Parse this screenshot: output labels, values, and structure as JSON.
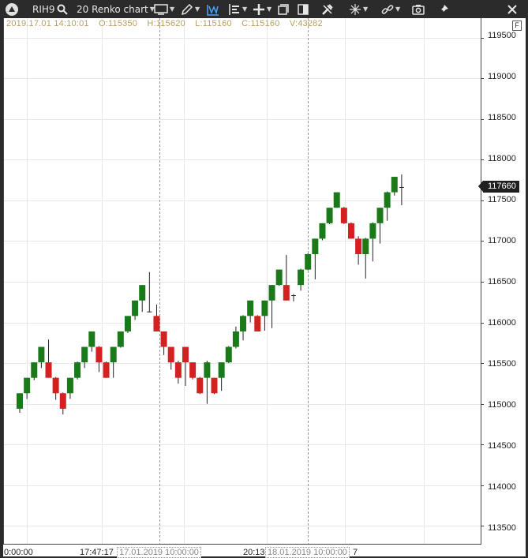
{
  "toolbar": {
    "symbol": "RIH9",
    "chart_type": "20 Renko chart",
    "icons": [
      "app-logo-icon",
      "search-icon",
      "monitor-icon",
      "pencil-icon",
      "indicator-icon",
      "layout-icon",
      "crosshair-plus-icon",
      "window-icon",
      "columns-icon",
      "tools-icon",
      "cursor-icon",
      "link-icon",
      "camera-icon",
      "pin-icon",
      "close-icon"
    ]
  },
  "ohlc": {
    "date": "2019.17.01 14:10:01",
    "open": "O:115350",
    "high": "H:115620",
    "low": "L:115160",
    "close": "C:115160",
    "volume": "V:43282"
  },
  "price_tag": "117660",
  "f_button": "F",
  "y_axis_labels": [
    "119500",
    "119000",
    "118500",
    "118000",
    "117500",
    "117000",
    "116500",
    "116000",
    "115500",
    "115000",
    "114500",
    "114000",
    "113500"
  ],
  "x_axis_labels": [
    "0:00:00",
    "17:47:17",
    "17.01.2019 10:00:00",
    "20:13",
    "18.01.2019 10:00:00",
    "7"
  ],
  "chart_data": {
    "type": "renko",
    "brick_size": 20,
    "ylim": [
      113280,
      119740
    ],
    "y_ticks": [
      113500,
      114000,
      114500,
      115000,
      115500,
      116000,
      116500,
      117000,
      117500,
      118000,
      118500,
      119000,
      119500
    ],
    "bricks": [
      {
        "o": 114940,
        "c": 115130,
        "h": 115130,
        "l": 114890,
        "d": "up"
      },
      {
        "o": 115130,
        "c": 115320,
        "h": 115320,
        "l": 115060,
        "d": "up"
      },
      {
        "o": 115320,
        "c": 115510,
        "h": 115510,
        "l": 115290,
        "d": "up"
      },
      {
        "o": 115510,
        "c": 115700,
        "h": 115700,
        "l": 115440,
        "d": "up"
      },
      {
        "o": 115510,
        "c": 115320,
        "h": 115790,
        "l": 115320,
        "d": "down"
      },
      {
        "o": 115320,
        "c": 115130,
        "h": 115330,
        "l": 115050,
        "d": "down"
      },
      {
        "o": 115130,
        "c": 114940,
        "h": 115140,
        "l": 114870,
        "d": "down"
      },
      {
        "o": 115130,
        "c": 115320,
        "h": 115320,
        "l": 115060,
        "d": "up"
      },
      {
        "o": 115320,
        "c": 115510,
        "h": 115520,
        "l": 115300,
        "d": "up"
      },
      {
        "o": 115510,
        "c": 115700,
        "h": 115700,
        "l": 115440,
        "d": "up"
      },
      {
        "o": 115700,
        "c": 115890,
        "h": 115890,
        "l": 115640,
        "d": "up"
      },
      {
        "o": 115700,
        "c": 115510,
        "h": 115710,
        "l": 115390,
        "d": "down"
      },
      {
        "o": 115510,
        "c": 115320,
        "h": 115520,
        "l": 115320,
        "d": "down"
      },
      {
        "o": 115510,
        "c": 115700,
        "h": 115700,
        "l": 115320,
        "d": "up"
      },
      {
        "o": 115700,
        "c": 115890,
        "h": 115890,
        "l": 115690,
        "d": "up"
      },
      {
        "o": 115890,
        "c": 116080,
        "h": 116080,
        "l": 115870,
        "d": "up"
      },
      {
        "o": 116080,
        "c": 116270,
        "h": 116270,
        "l": 116030,
        "d": "up"
      },
      {
        "o": 116270,
        "c": 116460,
        "h": 116460,
        "l": 116130,
        "d": "up"
      },
      {
        "o": 116130,
        "c": 116130,
        "h": 116620,
        "l": 116130,
        "d": "doji"
      },
      {
        "o": 116080,
        "c": 115890,
        "h": 116220,
        "l": 115890,
        "d": "down"
      },
      {
        "o": 115890,
        "c": 115700,
        "h": 115890,
        "l": 115600,
        "d": "down"
      },
      {
        "o": 115700,
        "c": 115510,
        "h": 115700,
        "l": 115420,
        "d": "down"
      },
      {
        "o": 115510,
        "c": 115320,
        "h": 115530,
        "l": 115250,
        "d": "down"
      },
      {
        "o": 115700,
        "c": 115510,
        "h": 115700,
        "l": 115220,
        "d": "down"
      },
      {
        "o": 115510,
        "c": 115320,
        "h": 115510,
        "l": 115300,
        "d": "down"
      },
      {
        "o": 115320,
        "c": 115130,
        "h": 115330,
        "l": 115120,
        "d": "down"
      },
      {
        "o": 115320,
        "c": 115510,
        "h": 115530,
        "l": 115000,
        "d": "up"
      },
      {
        "o": 115320,
        "c": 115130,
        "h": 115320,
        "l": 115120,
        "d": "down"
      },
      {
        "o": 115320,
        "c": 115510,
        "h": 115510,
        "l": 115160,
        "d": "up"
      },
      {
        "o": 115510,
        "c": 115700,
        "h": 115710,
        "l": 115500,
        "d": "up"
      },
      {
        "o": 115700,
        "c": 115890,
        "h": 115950,
        "l": 115680,
        "d": "up"
      },
      {
        "o": 115890,
        "c": 116080,
        "h": 116090,
        "l": 115780,
        "d": "up"
      },
      {
        "o": 116080,
        "c": 116270,
        "h": 116270,
        "l": 116000,
        "d": "up"
      },
      {
        "o": 116080,
        "c": 115890,
        "h": 116090,
        "l": 115890,
        "d": "down"
      },
      {
        "o": 116080,
        "c": 116270,
        "h": 116270,
        "l": 115900,
        "d": "up"
      },
      {
        "o": 116270,
        "c": 116460,
        "h": 116460,
        "l": 115930,
        "d": "up"
      },
      {
        "o": 116460,
        "c": 116650,
        "h": 116650,
        "l": 116450,
        "d": "up"
      },
      {
        "o": 116460,
        "c": 116270,
        "h": 116830,
        "l": 116270,
        "d": "down"
      },
      {
        "o": 116330,
        "c": 116330,
        "h": 116350,
        "l": 116260,
        "d": "doji"
      },
      {
        "o": 116460,
        "c": 116650,
        "h": 116660,
        "l": 116390,
        "d": "up"
      },
      {
        "o": 116650,
        "c": 116840,
        "h": 116850,
        "l": 116640,
        "d": "up"
      },
      {
        "o": 116840,
        "c": 117030,
        "h": 117030,
        "l": 116530,
        "d": "up"
      },
      {
        "o": 117030,
        "c": 117220,
        "h": 117220,
        "l": 117010,
        "d": "up"
      },
      {
        "o": 117220,
        "c": 117410,
        "h": 117410,
        "l": 117210,
        "d": "up"
      },
      {
        "o": 117410,
        "c": 117600,
        "h": 117600,
        "l": 117410,
        "d": "up"
      },
      {
        "o": 117410,
        "c": 117220,
        "h": 117420,
        "l": 117210,
        "d": "down"
      },
      {
        "o": 117220,
        "c": 117030,
        "h": 117230,
        "l": 117030,
        "d": "down"
      },
      {
        "o": 117030,
        "c": 116840,
        "h": 117060,
        "l": 116710,
        "d": "down"
      },
      {
        "o": 116840,
        "c": 117030,
        "h": 117040,
        "l": 116540,
        "d": "up"
      },
      {
        "o": 117030,
        "c": 117220,
        "h": 117230,
        "l": 116750,
        "d": "up"
      },
      {
        "o": 117220,
        "c": 117410,
        "h": 117410,
        "l": 116970,
        "d": "up"
      },
      {
        "o": 117410,
        "c": 117600,
        "h": 117610,
        "l": 117250,
        "d": "up"
      },
      {
        "o": 117600,
        "c": 117790,
        "h": 117790,
        "l": 117560,
        "d": "up"
      },
      {
        "o": 117660,
        "c": 117660,
        "h": 117820,
        "l": 117440,
        "d": "doji"
      }
    ],
    "colors": {
      "up": "#1a7a1a",
      "down": "#d42020",
      "wick": "#222222",
      "grid": "#e8e8e8",
      "session": "#999999"
    }
  }
}
